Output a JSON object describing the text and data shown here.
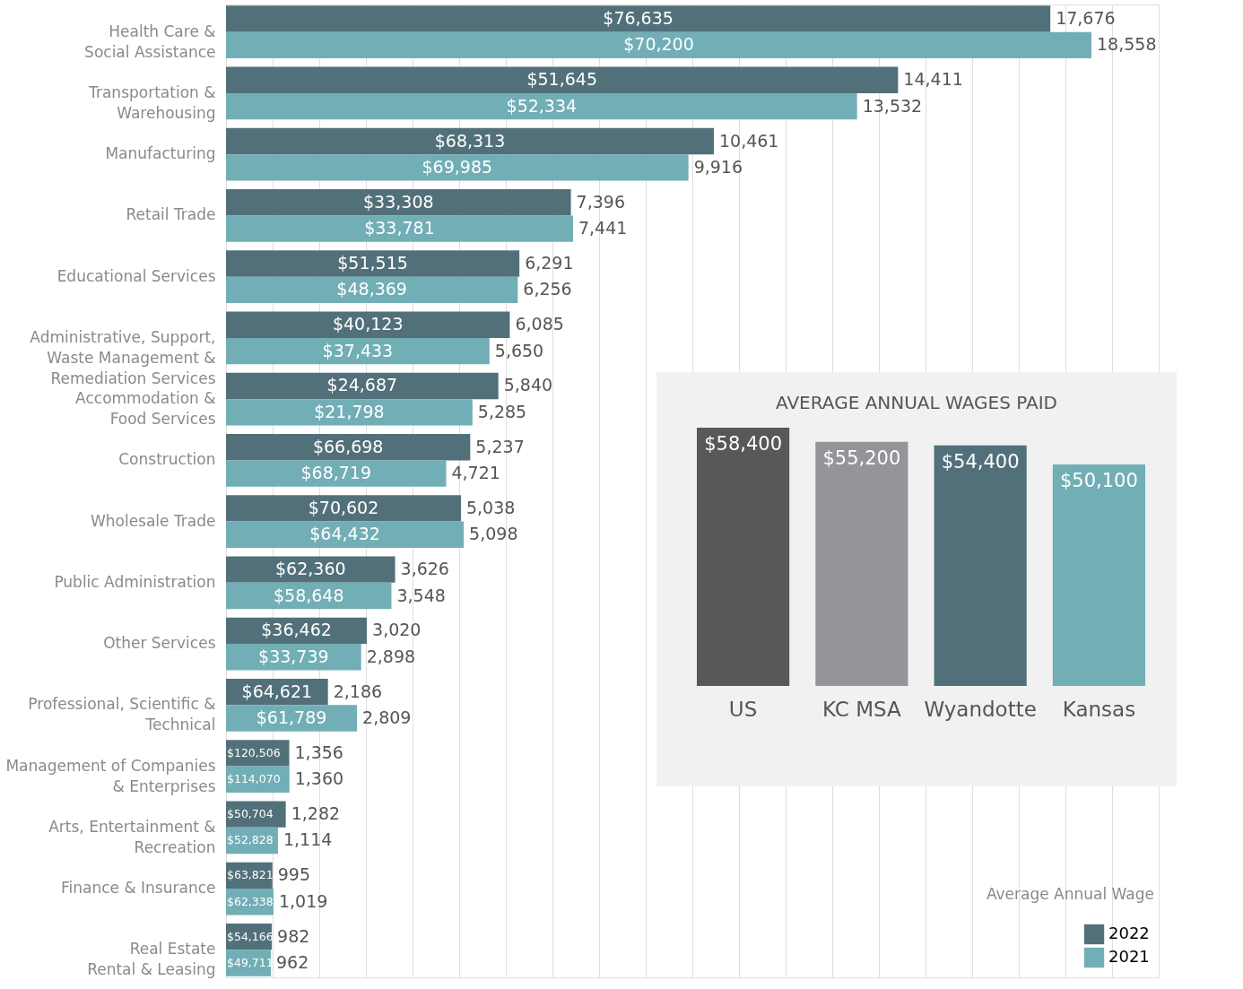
{
  "chart_data": [
    {
      "type": "bar",
      "orientation": "horizontal",
      "categories": [
        "Health Care &\nSocial Assistance",
        "Transportation &\nWarehousing",
        "Manufacturing",
        "Retail Trade",
        "Educational Services",
        "Administrative, Support,\nWaste Management &\nRemediation Services",
        "Accommodation &\nFood Services",
        "Construction",
        "Wholesale Trade",
        "Public Administration",
        "Other Services",
        "Professional, Scientific &\nTechnical",
        "Management of Companies\n& Enterprises",
        "Arts, Entertainment &\nRecreation",
        "Finance & Insurance",
        "Real Estate\nRental & Leasing"
      ],
      "series": [
        {
          "name": "2022",
          "color": "#52707a",
          "values": [
            17676,
            14411,
            10461,
            7396,
            6291,
            6085,
            5840,
            5237,
            5038,
            3626,
            3020,
            2186,
            1356,
            1282,
            995,
            982
          ],
          "value_labels": [
            "17,676",
            "14,411",
            "10,461",
            "7,396",
            "6,291",
            "6,085",
            "5,840",
            "5,237",
            "5,038",
            "3,626",
            "3,020",
            "2,186",
            "1,356",
            "1,282",
            "995",
            "982"
          ]
        },
        {
          "name": "2021",
          "color": "#72aeb6",
          "values": [
            18558,
            13532,
            9916,
            7441,
            6256,
            5650,
            5285,
            4721,
            5098,
            3548,
            2898,
            2809,
            1360,
            1114,
            1019,
            962
          ],
          "value_labels": [
            "18,558",
            "13,532",
            "9,916",
            "7,441",
            "6,256",
            "5,650",
            "5,285",
            "4,721",
            "5,098",
            "3,548",
            "2,898",
            "2,809",
            "1,360",
            "1,114",
            "1,019",
            "962"
          ]
        }
      ],
      "grid": "x",
      "legend": "bottom right",
      "tick_labels": "y",
      "annotations": [
        "$76,635",
        "$70,200",
        "$51,645",
        "$52,334",
        "$68,313",
        "$69,985",
        "$33,308",
        "$33,781",
        "$51,515",
        "$48,369",
        "$40,123",
        "$37,433",
        "$24,687",
        "$21,798",
        "$66,698",
        "$68,719",
        "$70,602",
        "$64,432",
        "$62,360",
        "$58,648",
        "$36,462",
        "$33,739",
        "$64,621",
        "$61,789",
        "$120,506",
        "$114,070",
        "$50,704",
        "$52,828",
        "$63,821",
        "$62,338",
        "$54,166",
        "$49,711",
        "Average Annual Wage"
      ]
    },
    {
      "type": "bar",
      "title": "AVERAGE ANNUAL WAGES PAID",
      "categories": [
        "US",
        "KC MSA",
        "Wyandotte",
        "Kansas"
      ],
      "values": [
        58400,
        55200,
        54400,
        50100
      ],
      "value_labels": [
        "$58,400",
        "$55,200",
        "$54,400",
        "$50,100"
      ],
      "colors": [
        "#58585a",
        "#939598",
        "#52707a",
        "#72aeb6"
      ],
      "tick_labels": "x"
    }
  ]
}
